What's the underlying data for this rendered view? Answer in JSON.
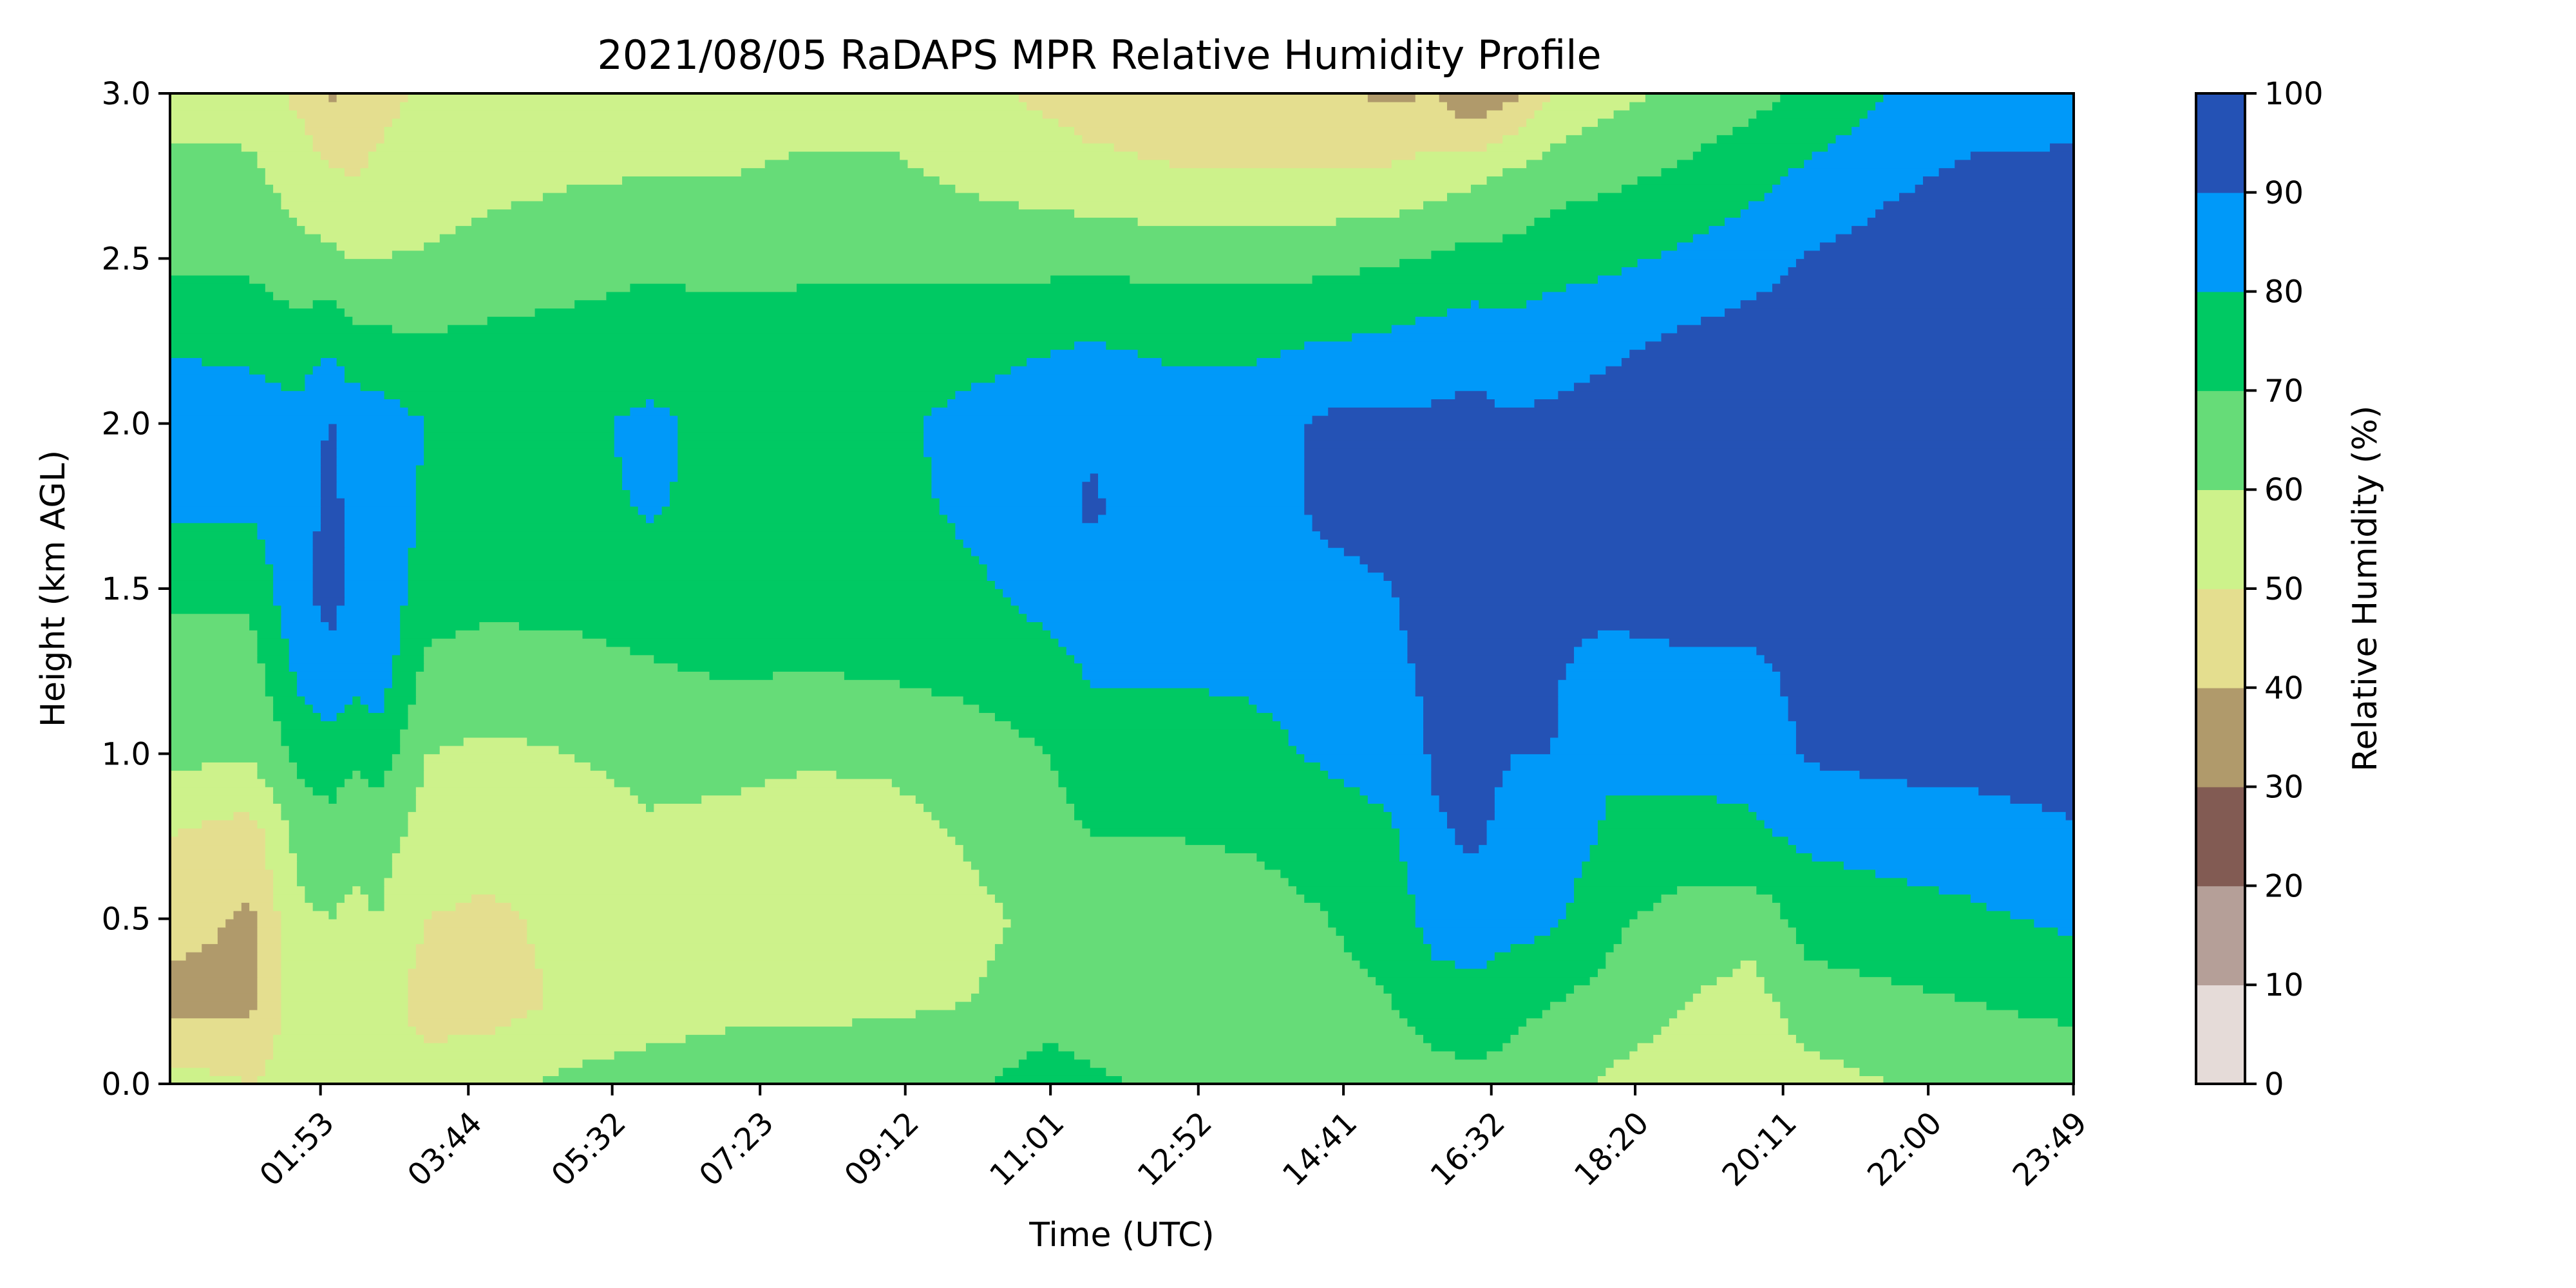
{
  "chart_data": {
    "type": "heatmap",
    "subtype": "filled-contour",
    "title": "2021/08/05 RaDAPS MPR Relative Humidity Profile",
    "xlabel": "Time (UTC)",
    "ylabel": "Height (km AGL)",
    "colorbar_label": "Relative Humidity (%)",
    "x_range_hours": [
      0.0,
      23.82
    ],
    "x_tick_labels": [
      "01:53",
      "03:44",
      "05:32",
      "07:23",
      "09:12",
      "11:01",
      "12:52",
      "14:41",
      "16:32",
      "18:20",
      "20:11",
      "22:00",
      "23:49"
    ],
    "x_tick_hours": [
      1.883,
      3.733,
      5.533,
      7.383,
      9.2,
      11.017,
      12.867,
      14.683,
      16.533,
      18.333,
      20.183,
      22.0,
      23.817
    ],
    "y_range_km": [
      0.0,
      3.0
    ],
    "y_ticks": [
      0.0,
      0.5,
      1.0,
      1.5,
      2.0,
      2.5,
      3.0
    ],
    "y_tick_labels": [
      "0.0",
      "0.5",
      "1.0",
      "1.5",
      "2.0",
      "2.5",
      "3.0"
    ],
    "levels": [
      0,
      10,
      20,
      30,
      40,
      50,
      60,
      70,
      80,
      90,
      100
    ],
    "level_colors": [
      "#e5dbd8",
      "#b59f98",
      "#825b53",
      "#b09a6b",
      "#e4de8f",
      "#cdf28b",
      "#66dc78",
      "#00c963",
      "#0099f9",
      "#2452b5"
    ],
    "profile_times_hours": [
      0.0,
      1.0,
      1.6,
      2.0,
      2.3,
      2.6,
      3.2,
      4.0,
      5.0,
      6.0,
      7.0,
      8.0,
      9.0,
      10.0,
      11.0,
      11.5,
      12.5,
      13.5,
      14.5,
      15.3,
      15.8,
      16.3,
      16.8,
      17.3,
      18.0,
      19.0,
      19.8,
      20.5,
      21.5,
      22.5,
      23.82
    ],
    "profile_heights_km": [
      0.0,
      0.25,
      0.5,
      0.75,
      1.0,
      1.25,
      1.5,
      1.75,
      2.0,
      2.25,
      2.5,
      2.75,
      3.0
    ],
    "relative_humidity_pct": [
      [
        55,
        35,
        45,
        50,
        63,
        65,
        72,
        82,
        88,
        78,
        68,
        63,
        56
      ],
      [
        50,
        38,
        38,
        45,
        61,
        65,
        72,
        82,
        86,
        77,
        68,
        62,
        56
      ],
      [
        54,
        56,
        58,
        63,
        72,
        82,
        88,
        86,
        83,
        74,
        63,
        56,
        48
      ],
      [
        55,
        57,
        60,
        66,
        76,
        88,
        93,
        92,
        91,
        78,
        62,
        52,
        38
      ],
      [
        53,
        55,
        58,
        62,
        72,
        83,
        88,
        88,
        86,
        73,
        60,
        50,
        42
      ],
      [
        53,
        56,
        60,
        64,
        76,
        86,
        90,
        89,
        85,
        72,
        60,
        52,
        47
      ],
      [
        55,
        45,
        50,
        56,
        60,
        68,
        74,
        78,
        80,
        71,
        61,
        55,
        52
      ],
      [
        58,
        45,
        48,
        54,
        58,
        66,
        73,
        77,
        78,
        72,
        64,
        57,
        52
      ],
      [
        62,
        52,
        53,
        56,
        60,
        67,
        73,
        77,
        78,
        73,
        66,
        59,
        53
      ],
      [
        65,
        54,
        56,
        59,
        62,
        69,
        75,
        81,
        82,
        75,
        68,
        60,
        55
      ],
      [
        66,
        57,
        57,
        58,
        62,
        71,
        74,
        77,
        77,
        74,
        67,
        60,
        55
      ],
      [
        67,
        57,
        56,
        56,
        61,
        70,
        73,
        76,
        77,
        74,
        68,
        62,
        56
      ],
      [
        68,
        58,
        56,
        56,
        62,
        71,
        75,
        77,
        78,
        74,
        68,
        62,
        56
      ],
      [
        68,
        60,
        58,
        61,
        65,
        73,
        78,
        82,
        83,
        76,
        67,
        58,
        52
      ],
      [
        76,
        64,
        62,
        66,
        70,
        76,
        84,
        86,
        86,
        79,
        67,
        55,
        48
      ],
      [
        72,
        64,
        64,
        70,
        75,
        81,
        87,
        91,
        89,
        80,
        68,
        53,
        46
      ],
      [
        68,
        65,
        66,
        70,
        75,
        81,
        84,
        86,
        85,
        78,
        66,
        51,
        44
      ],
      [
        67,
        65,
        66,
        71,
        76,
        82,
        85,
        86,
        85,
        78,
        66,
        51,
        44
      ],
      [
        64,
        67,
        70,
        74,
        82,
        86,
        88,
        92,
        92,
        80,
        67,
        51,
        42
      ],
      [
        65,
        70,
        74,
        79,
        84,
        88,
        90,
        92,
        92,
        82,
        69,
        52,
        38
      ],
      [
        66,
        75,
        84,
        89,
        91,
        92,
        93,
        93,
        92,
        84,
        71,
        55,
        40
      ],
      [
        68,
        76,
        87,
        91,
        92,
        93,
        94,
        94,
        93,
        86,
        73,
        58,
        30
      ],
      [
        67,
        72,
        84,
        88,
        90,
        91,
        93,
        93,
        91,
        84,
        73,
        62,
        38
      ],
      [
        66,
        70,
        82,
        87,
        90,
        91,
        93,
        93,
        92,
        86,
        76,
        66,
        50
      ],
      [
        58,
        67,
        72,
        78,
        82,
        86,
        94,
        94,
        94,
        88,
        78,
        68,
        57
      ],
      [
        54,
        60,
        66,
        75,
        85,
        88,
        95,
        95,
        95,
        92,
        82,
        72,
        63
      ],
      [
        52,
        56,
        64,
        78,
        84,
        88,
        95,
        95,
        96,
        94,
        86,
        77,
        67
      ],
      [
        56,
        66,
        74,
        82,
        91,
        93,
        96,
        96,
        97,
        95,
        91,
        82,
        72
      ],
      [
        60,
        68,
        76,
        84,
        93,
        95,
        96,
        97,
        97,
        96,
        94,
        88,
        80
      ],
      [
        61,
        70,
        78,
        86,
        93,
        96,
        97,
        97,
        97,
        97,
        96,
        92,
        84
      ],
      [
        63,
        73,
        82,
        89,
        94,
        96,
        97,
        97,
        97,
        97,
        97,
        93,
        85
      ]
    ]
  }
}
